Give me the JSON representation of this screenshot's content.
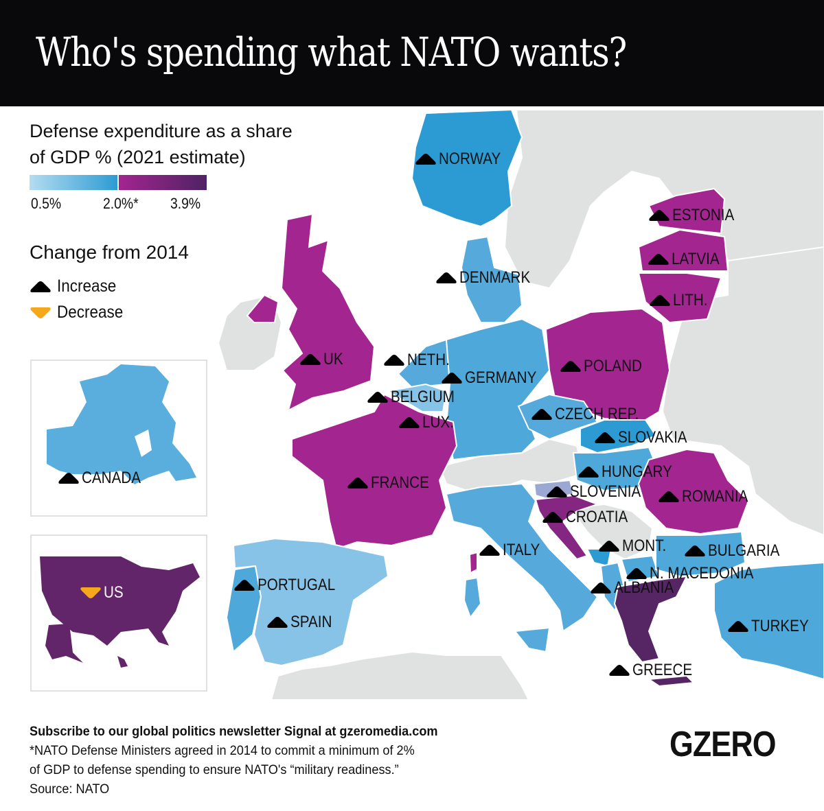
{
  "header": {
    "title": "Who's spending what NATO wants?"
  },
  "legend": {
    "title_line1": "Defense expenditure as a share",
    "title_line2": "of GDP % (2021 estimate)",
    "scale_ticks": [
      "0.5%",
      "2.0%*",
      "3.9%"
    ],
    "scale_colors": {
      "low": "#b4dcf1",
      "mid_blue": "#2d9bd3",
      "mid_purple": "#a3258f",
      "high": "#4f2264"
    },
    "change_title": "Change from 2014",
    "increase_label": "Increase",
    "decrease_label": "Decrease",
    "increase_color": "#000000",
    "decrease_color": "#f6a81c"
  },
  "countries": [
    {
      "name": "NORWAY",
      "change": "increase",
      "band": "below 2%"
    },
    {
      "name": "DENMARK",
      "change": "increase",
      "band": "below 2%"
    },
    {
      "name": "ESTONIA",
      "change": "increase",
      "band": "above 2%"
    },
    {
      "name": "LATVIA",
      "change": "increase",
      "band": "above 2%"
    },
    {
      "name": "LITH.",
      "change": "increase",
      "band": "above 2%"
    },
    {
      "name": "UK",
      "change": "increase",
      "band": "above 2%"
    },
    {
      "name": "NETH.",
      "change": "increase",
      "band": "below 2%"
    },
    {
      "name": "GERMANY",
      "change": "increase",
      "band": "below 2%"
    },
    {
      "name": "BELGIUM",
      "change": "increase",
      "band": "below 2%"
    },
    {
      "name": "LUX.",
      "change": "increase",
      "band": "below 2%"
    },
    {
      "name": "POLAND",
      "change": "increase",
      "band": "above 2%"
    },
    {
      "name": "CZECH REP.",
      "change": "increase",
      "band": "below 2%"
    },
    {
      "name": "SLOVAKIA",
      "change": "increase",
      "band": "above 2%"
    },
    {
      "name": "HUNGARY",
      "change": "increase",
      "band": "below 2%"
    },
    {
      "name": "FRANCE",
      "change": "increase",
      "band": "above 2%"
    },
    {
      "name": "SLOVENIA",
      "change": "increase",
      "band": "below 2%"
    },
    {
      "name": "ROMANIA",
      "change": "increase",
      "band": "above 2%"
    },
    {
      "name": "CROATIA",
      "change": "increase",
      "band": "above 2%"
    },
    {
      "name": "ITALY",
      "change": "increase",
      "band": "below 2%"
    },
    {
      "name": "MONT.",
      "change": "increase",
      "band": "below 2%"
    },
    {
      "name": "BULGARIA",
      "change": "increase",
      "band": "below 2%"
    },
    {
      "name": "N. MACEDONIA",
      "change": "increase",
      "band": "below 2%"
    },
    {
      "name": "ALBANIA",
      "change": "increase",
      "band": "below 2%"
    },
    {
      "name": "PORTUGAL",
      "change": "increase",
      "band": "below 2%"
    },
    {
      "name": "SPAIN",
      "change": "increase",
      "band": "below 2%"
    },
    {
      "name": "TURKEY",
      "change": "increase",
      "band": "below 2%"
    },
    {
      "name": "GREECE",
      "change": "increase",
      "band": "above 2%"
    }
  ],
  "insets": {
    "canada": {
      "name": "CANADA",
      "change": "increase",
      "band": "below 2%"
    },
    "us": {
      "name": "US",
      "change": "decrease",
      "band": "above 2%"
    }
  },
  "footer": {
    "subscribe": "Subscribe to our global politics newsletter Signal at gzeromedia.com",
    "note_line1": "*NATO Defense Ministers agreed in 2014 to commit a minimum of 2%",
    "note_line2": "of GDP to defense spending to ensure NATO's “military readiness.”",
    "source": "Source: NATO"
  },
  "logo": "GZERO"
}
